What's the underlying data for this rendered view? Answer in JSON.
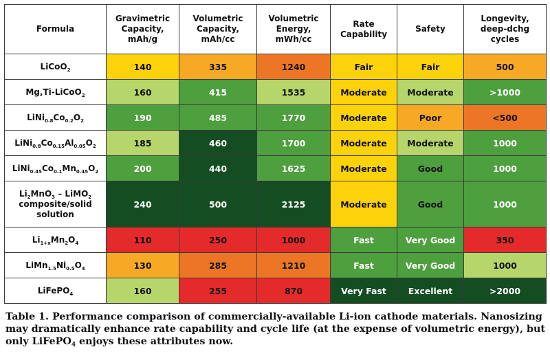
{
  "colors": {
    "yellow": "#fcd20b",
    "light_orange": "#f7a824",
    "orange": "#ec7626",
    "red": "#e42a2a",
    "light_green": "#b6d66c",
    "mid_green": "#4e9f3e",
    "dark_green": "#154d22",
    "border": "#3a3a3a"
  },
  "table": {
    "headers": [
      "Formula",
      "Gravimetric Capacity, mAh/g",
      "Volumetric Capacity, mAh/cc",
      "Volumetric Energy, mWh/cc",
      "Rate Capability",
      "Safety",
      "Longevity, deep-dchg cycles"
    ],
    "rows": [
      {
        "formula": "LiCoO2",
        "cells": [
          {
            "text": "140",
            "color": "#fcd20b",
            "light": false
          },
          {
            "text": "335",
            "color": "#f7a824",
            "light": false
          },
          {
            "text": "1240",
            "color": "#ec7626",
            "light": false
          },
          {
            "text": "Fair",
            "color": "#fcd20b",
            "light": false
          },
          {
            "text": "Fair",
            "color": "#fcd20b",
            "light": false
          },
          {
            "text": "500",
            "color": "#f7a824",
            "light": false
          }
        ]
      },
      {
        "formula": "Mg,Ti-LiCoO2",
        "cells": [
          {
            "text": "160",
            "color": "#b6d66c",
            "light": false
          },
          {
            "text": "415",
            "color": "#4e9f3e",
            "light": true
          },
          {
            "text": "1535",
            "color": "#b6d66c",
            "light": false
          },
          {
            "text": "Moderate",
            "color": "#fcd20b",
            "light": false
          },
          {
            "text": "Moderate",
            "color": "#b6d66c",
            "light": false
          },
          {
            "text": ">1000",
            "color": "#4e9f3e",
            "light": true
          }
        ]
      },
      {
        "formula": "LiNi0.8Co0.2O2",
        "cells": [
          {
            "text": "190",
            "color": "#4e9f3e",
            "light": true
          },
          {
            "text": "485",
            "color": "#4e9f3e",
            "light": true
          },
          {
            "text": "1770",
            "color": "#4e9f3e",
            "light": true
          },
          {
            "text": "Moderate",
            "color": "#fcd20b",
            "light": false
          },
          {
            "text": "Poor",
            "color": "#f7a824",
            "light": false
          },
          {
            "text": "<500",
            "color": "#ec7626",
            "light": false
          }
        ]
      },
      {
        "formula": "LiNi0.8Co0.15Al0.05O2",
        "cells": [
          {
            "text": "185",
            "color": "#b6d66c",
            "light": false
          },
          {
            "text": "460",
            "color": "#154d22",
            "light": true
          },
          {
            "text": "1700",
            "color": "#4e9f3e",
            "light": true
          },
          {
            "text": "Moderate",
            "color": "#fcd20b",
            "light": false
          },
          {
            "text": "Moderate",
            "color": "#b6d66c",
            "light": false
          },
          {
            "text": "1000",
            "color": "#4e9f3e",
            "light": true
          }
        ]
      },
      {
        "formula": "LiNi0.45Co0.1Mn0.45O2",
        "cells": [
          {
            "text": "200",
            "color": "#4e9f3e",
            "light": true
          },
          {
            "text": "440",
            "color": "#154d22",
            "light": true
          },
          {
            "text": "1625",
            "color": "#4e9f3e",
            "light": true
          },
          {
            "text": "Moderate",
            "color": "#fcd20b",
            "light": false
          },
          {
            "text": "Good",
            "color": "#4e9f3e",
            "light": false
          },
          {
            "text": "1000",
            "color": "#4e9f3e",
            "light": true
          }
        ]
      },
      {
        "formula": "Li2MnO3 – LiMO2 composite/solid solution",
        "tall": true,
        "cells": [
          {
            "text": "240",
            "color": "#154d22",
            "light": true
          },
          {
            "text": "500",
            "color": "#154d22",
            "light": true
          },
          {
            "text": "2125",
            "color": "#154d22",
            "light": true
          },
          {
            "text": "Moderate",
            "color": "#fcd20b",
            "light": false
          },
          {
            "text": "Good",
            "color": "#4e9f3e",
            "light": false
          },
          {
            "text": "1000",
            "color": "#4e9f3e",
            "light": true
          }
        ]
      },
      {
        "formula": "Li1+xMn2O4",
        "cells": [
          {
            "text": "110",
            "color": "#e42a2a",
            "light": false
          },
          {
            "text": "250",
            "color": "#e42a2a",
            "light": false
          },
          {
            "text": "1000",
            "color": "#e42a2a",
            "light": false
          },
          {
            "text": "Fast",
            "color": "#4e9f3e",
            "light": true
          },
          {
            "text": "Very Good",
            "color": "#4e9f3e",
            "light": true
          },
          {
            "text": "350",
            "color": "#e42a2a",
            "light": false
          }
        ]
      },
      {
        "formula": "LiMn1.5Ni0.5O4",
        "cells": [
          {
            "text": "130",
            "color": "#f7a824",
            "light": false
          },
          {
            "text": "285",
            "color": "#ec7626",
            "light": false
          },
          {
            "text": "1210",
            "color": "#ec7626",
            "light": false
          },
          {
            "text": "Fast",
            "color": "#4e9f3e",
            "light": true
          },
          {
            "text": "Very Good",
            "color": "#4e9f3e",
            "light": true
          },
          {
            "text": "1000",
            "color": "#b6d66c",
            "light": false
          }
        ]
      },
      {
        "formula": "LiFePO4",
        "cells": [
          {
            "text": "160",
            "color": "#b6d66c",
            "light": false
          },
          {
            "text": "255",
            "color": "#e42a2a",
            "light": false
          },
          {
            "text": "870",
            "color": "#e42a2a",
            "light": false
          },
          {
            "text": "Very Fast",
            "color": "#154d22",
            "light": true
          },
          {
            "text": "Excellent",
            "color": "#154d22",
            "light": true
          },
          {
            "text": ">2000",
            "color": "#154d22",
            "light": true
          }
        ]
      }
    ]
  },
  "caption": "Table 1. Performance comparison of commercially-available Li-ion cathode materials. Nanosizing may dramatically enhance rate capability and cycle life (at the expense of volumetric energy), but only LiFePO4 enjoys these attributes now."
}
